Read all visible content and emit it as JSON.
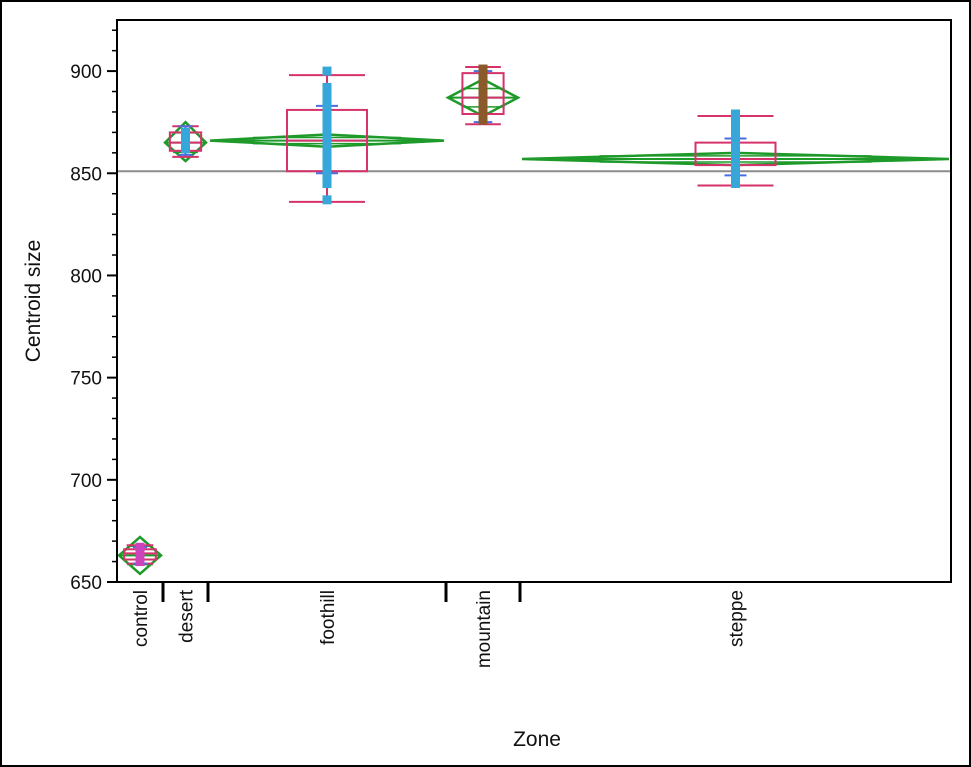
{
  "chart_data": {
    "type": "box",
    "title": "",
    "xlabel": "Zone",
    "ylabel": "Centroid size",
    "ylim": [
      650,
      925
    ],
    "yticks": [
      650,
      700,
      750,
      800,
      850,
      900
    ],
    "grand_mean": 851,
    "grid": false,
    "legend": "none",
    "categories": [
      "control",
      "desert",
      "foothill",
      "mountain",
      "steppe"
    ],
    "groups": [
      {
        "name": "control",
        "mean": 663,
        "ci": [
          654,
          672
        ],
        "box": {
          "whisker_low": 659,
          "q1": 661,
          "median": 664,
          "q3": 666,
          "whisker_high": 668
        },
        "mean_error": [
          659,
          667
        ],
        "points": [
          660,
          661,
          662,
          663,
          664,
          665,
          666,
          667
        ]
      },
      {
        "name": "desert",
        "mean": 865,
        "ci": [
          856,
          875
        ],
        "box": {
          "whisker_low": 858,
          "q1": 861,
          "median": 865,
          "q3": 870,
          "whisker_high": 873
        },
        "mean_error": [
          859,
          873
        ],
        "points": [
          862,
          864,
          866,
          868,
          870
        ]
      },
      {
        "name": "foothill",
        "mean": 866,
        "ci": [
          863,
          869
        ],
        "box": {
          "whisker_low": 836,
          "q1": 851,
          "median": 866,
          "q3": 881,
          "whisker_high": 898
        },
        "mean_error": [
          850,
          883
        ],
        "points": [
          837,
          845,
          849,
          852,
          855,
          858,
          860,
          862,
          864,
          866,
          868,
          870,
          872,
          875,
          878,
          881,
          884,
          888,
          892,
          900
        ]
      },
      {
        "name": "mountain",
        "mean": 887,
        "ci": [
          878,
          896
        ],
        "box": {
          "whisker_low": 874,
          "q1": 879,
          "median": 887,
          "q3": 899,
          "whisker_high": 902
        },
        "mean_error": [
          875,
          900
        ],
        "points": [
          876,
          879,
          882,
          885,
          887,
          889,
          893,
          896,
          899,
          901
        ]
      },
      {
        "name": "steppe",
        "mean": 857,
        "ci": [
          854,
          860
        ],
        "box": {
          "whisker_low": 844,
          "q1": 854,
          "median": 857,
          "q3": 865,
          "whisker_high": 878
        },
        "mean_error": [
          849,
          867
        ],
        "points": [
          845,
          848,
          850,
          852,
          854,
          855,
          856,
          857,
          858,
          859,
          860,
          862,
          864,
          867,
          870,
          873,
          876,
          879
        ]
      }
    ],
    "colors": {
      "diamond": "#1e9a2a",
      "box": "#d6326b",
      "points": "#36a7d8",
      "points_alt": "#8a5a2b",
      "points_control": "#cc44bb",
      "mean_error": "#4a6ee0",
      "grand_mean_line": "#8c8c8c",
      "axis": "#000000"
    }
  }
}
